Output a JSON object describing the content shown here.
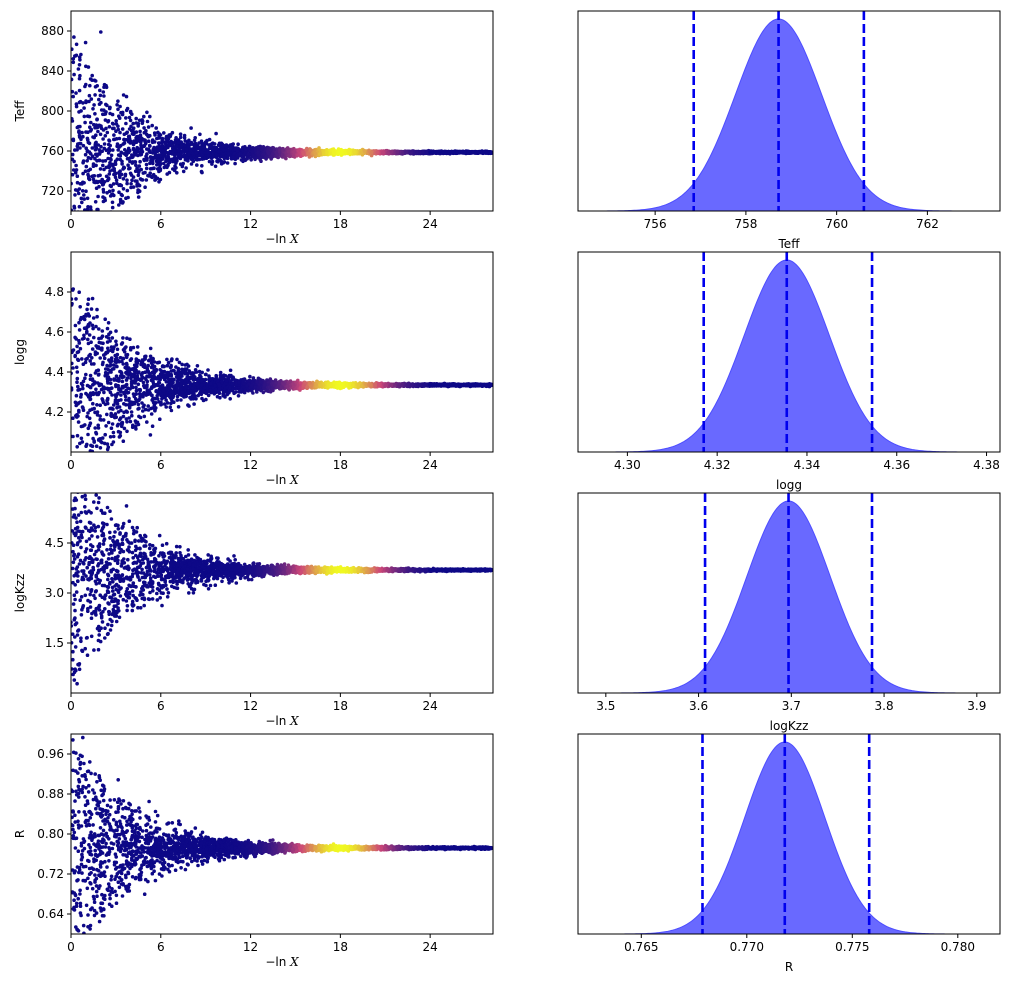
{
  "colors": {
    "trace_cold": "#0d0887",
    "trace_mid": "#cc4778",
    "trace_hot": "#f0f921",
    "posterior_fill": "#6666ff",
    "posterior_edge": "#4d4dff",
    "quantile_line": "#0000ee"
  },
  "chart_data": [
    {
      "type": "scatter",
      "panel": "trace",
      "xlabel_text": "−ln",
      "xlabel_var": "X",
      "ylabel": "Teff",
      "xlim": [
        0,
        28.2
      ],
      "ylim": [
        700,
        900
      ],
      "xticks": [
        "0",
        "6",
        "12",
        "18",
        "24"
      ],
      "xtick_values": [
        0,
        6,
        12,
        18,
        24
      ],
      "yticks": [
        "720",
        "760",
        "800",
        "840",
        "880"
      ],
      "ytick_values": [
        720,
        760,
        800,
        840,
        880
      ],
      "converged_value": 758.7,
      "initial_spread": 100,
      "peak_weight_at": 18
    },
    {
      "type": "area",
      "panel": "posterior",
      "xlabel": "Teff",
      "xlim": [
        754.3,
        763.6
      ],
      "xticks": [
        "756",
        "758",
        "760",
        "762"
      ],
      "xtick_values": [
        756,
        758,
        760,
        762
      ],
      "mean": 758.72,
      "sigma": 0.95,
      "quantiles": [
        756.85,
        758.72,
        760.6
      ]
    },
    {
      "type": "scatter",
      "panel": "trace",
      "xlabel_text": "−ln",
      "xlabel_var": "X",
      "ylabel": "logg",
      "xlim": [
        0,
        28.2
      ],
      "ylim": [
        4.0,
        5.0
      ],
      "xticks": [
        "0",
        "6",
        "12",
        "18",
        "24"
      ],
      "xtick_values": [
        0,
        6,
        12,
        18,
        24
      ],
      "yticks": [
        "4.2",
        "4.4",
        "4.6",
        "4.8"
      ],
      "ytick_values": [
        4.2,
        4.4,
        4.6,
        4.8
      ],
      "converged_value": 4.335,
      "initial_spread": 0.5,
      "peak_weight_at": 18
    },
    {
      "type": "area",
      "panel": "posterior",
      "xlabel": "logg",
      "xlim": [
        4.289,
        4.383
      ],
      "xticks": [
        "4.30",
        "4.32",
        "4.34",
        "4.36",
        "4.38"
      ],
      "xtick_values": [
        4.3,
        4.32,
        4.34,
        4.36,
        4.38
      ],
      "mean": 4.3355,
      "sigma": 0.0095,
      "quantiles": [
        4.317,
        4.3355,
        4.3545
      ]
    },
    {
      "type": "scatter",
      "panel": "trace",
      "xlabel_text": "−ln",
      "xlabel_var": "X",
      "ylabel": "logKzz",
      "xlim": [
        0,
        28.2
      ],
      "ylim": [
        0.0,
        6.0
      ],
      "xticks": [
        "0",
        "6",
        "12",
        "18",
        "24"
      ],
      "xtick_values": [
        0,
        6,
        12,
        18,
        24
      ],
      "yticks": [
        "1.5",
        "3.0",
        "4.5"
      ],
      "ytick_values": [
        1.5,
        3.0,
        4.5
      ],
      "converged_value": 3.69,
      "initial_spread": 3.0,
      "peak_weight_at": 18
    },
    {
      "type": "area",
      "panel": "posterior",
      "xlabel": "logKzz",
      "xlim": [
        3.47,
        3.925
      ],
      "xticks": [
        "3.5",
        "3.6",
        "3.7",
        "3.8",
        "3.9"
      ],
      "xtick_values": [
        3.5,
        3.6,
        3.7,
        3.8,
        3.9
      ],
      "mean": 3.697,
      "sigma": 0.045,
      "quantiles": [
        3.607,
        3.697,
        3.787
      ]
    },
    {
      "type": "scatter",
      "panel": "trace",
      "xlabel_text": "−ln",
      "xlabel_var": "X",
      "ylabel": "R",
      "xlim": [
        0,
        28.2
      ],
      "ylim": [
        0.6,
        1.0
      ],
      "xticks": [
        "0",
        "6",
        "12",
        "18",
        "24"
      ],
      "xtick_values": [
        0,
        6,
        12,
        18,
        24
      ],
      "yticks": [
        "0.64",
        "0.72",
        "0.80",
        "0.88",
        "0.96"
      ],
      "ytick_values": [
        0.64,
        0.72,
        0.8,
        0.88,
        0.96
      ],
      "converged_value": 0.772,
      "initial_spread": 0.2,
      "peak_weight_at": 18
    },
    {
      "type": "area",
      "panel": "posterior",
      "xlabel": "R",
      "xlim": [
        0.762,
        0.782
      ],
      "xticks": [
        "0.765",
        "0.770",
        "0.775",
        "0.780"
      ],
      "xtick_values": [
        0.765,
        0.77,
        0.775,
        0.78
      ],
      "mean": 0.7718,
      "sigma": 0.0019,
      "quantiles": [
        0.7679,
        0.7718,
        0.7758
      ]
    }
  ]
}
